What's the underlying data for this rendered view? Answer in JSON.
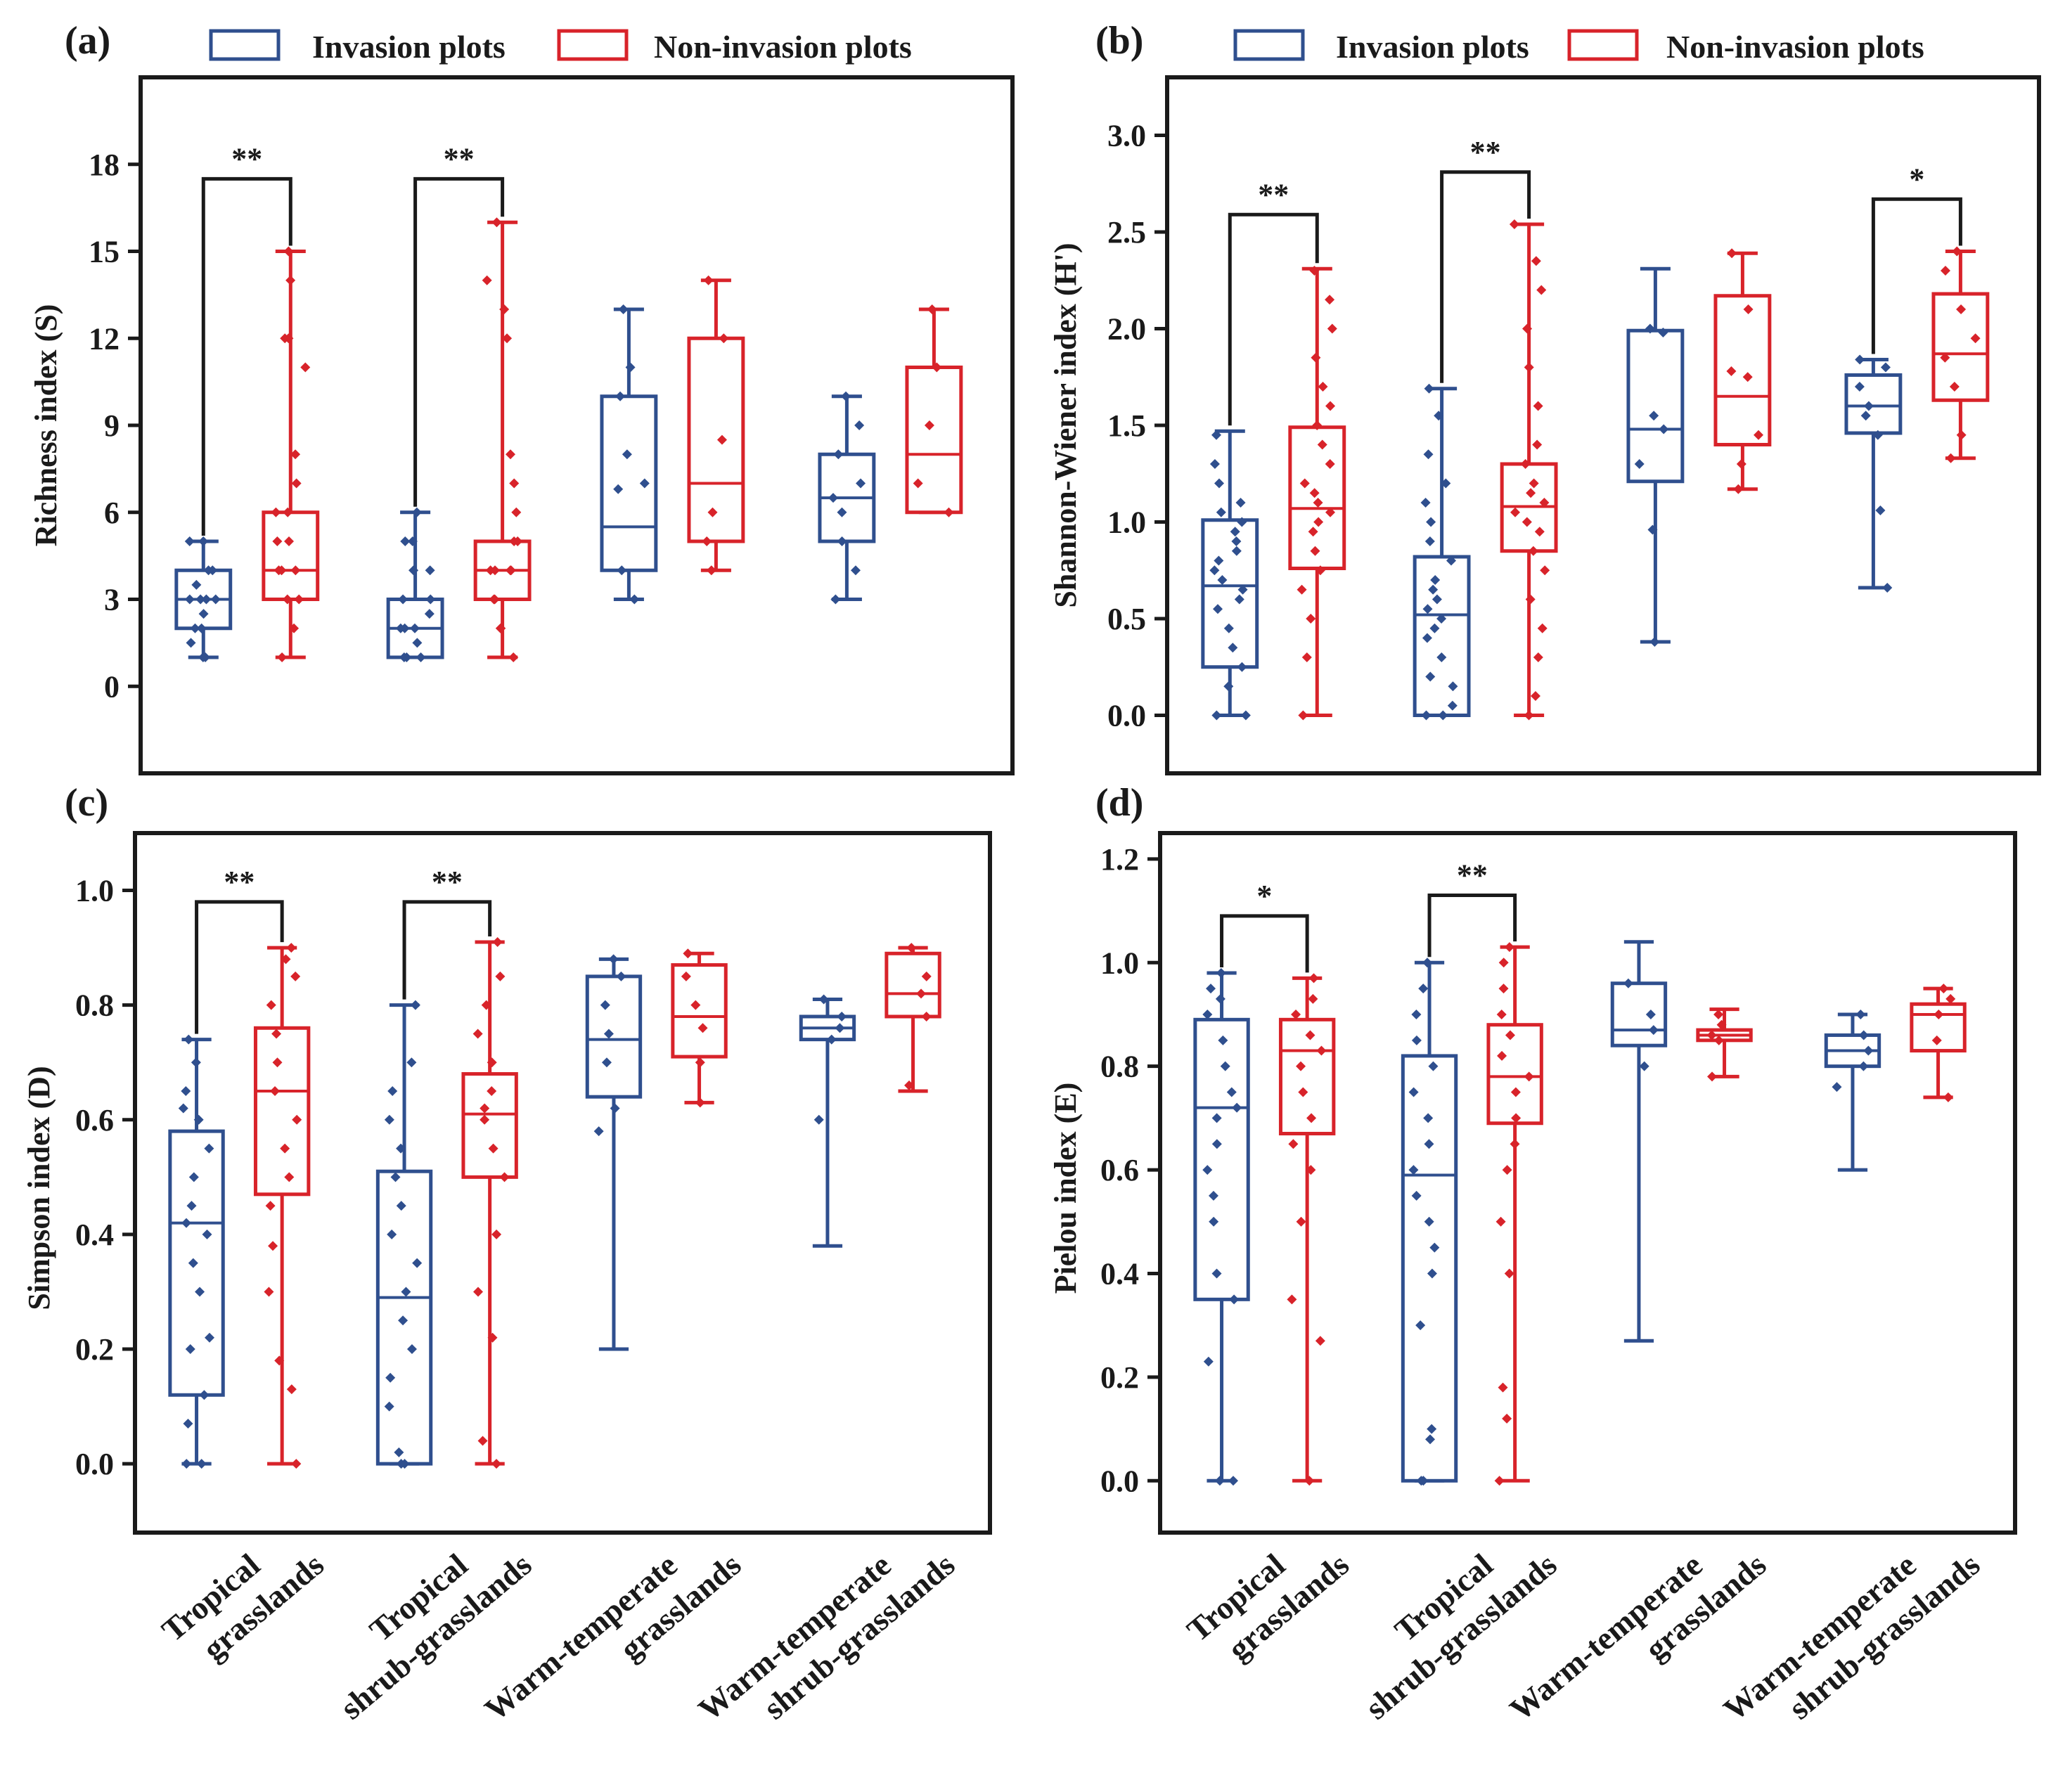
{
  "figure": {
    "colors": {
      "invasion": "#2f4f8e",
      "non_invasion": "#d8232a",
      "frame": "#1a1a1a"
    },
    "categories": [
      [
        "Tropical",
        "grasslands"
      ],
      [
        "Tropical",
        "shrub-grasslands"
      ],
      [
        "Warm-temperate",
        "grasslands"
      ],
      [
        "Warm-temperate",
        "shrub-grasslands"
      ]
    ]
  },
  "chart_data": [
    {
      "type": "box",
      "panel_label": "(a)",
      "ylabel": "Richness index (S)",
      "ylim": [
        -3,
        21
      ],
      "yticks": [
        0,
        3,
        6,
        9,
        12,
        15,
        18
      ],
      "ytick_labels": [
        "0",
        "3",
        "6",
        "9",
        "12",
        "15",
        "18"
      ],
      "legend": [
        "Invasion plots",
        "Non-invasion plots"
      ],
      "categories": [
        "Tropical grasslands",
        "Tropical shrub-grasslands",
        "Warm-temperate grasslands",
        "Warm-temperate shrub-grasslands"
      ],
      "series": [
        {
          "name": "Invasion plots",
          "boxes": [
            {
              "min": 1,
              "q1": 2,
              "median": 3,
              "q3": 4,
              "max": 5,
              "points": [
                1,
                1,
                1.5,
                2,
                2,
                2.5,
                3,
                3,
                3,
                3,
                3.5,
                4,
                4,
                5,
                5
              ]
            },
            {
              "min": 1,
              "q1": 1,
              "median": 2,
              "q3": 3,
              "max": 6,
              "points": [
                1,
                1,
                1,
                1.5,
                2,
                2,
                2,
                2.5,
                3,
                3,
                4,
                4,
                5,
                5,
                6
              ]
            },
            {
              "min": 3,
              "q1": 4,
              "median": 5.5,
              "q3": 10,
              "max": 13,
              "points": [
                3,
                4,
                6.8,
                7,
                8,
                10,
                11,
                13
              ]
            },
            {
              "min": 3,
              "q1": 5,
              "median": 6.5,
              "q3": 8,
              "max": 10,
              "points": [
                3,
                4,
                5,
                6,
                6.5,
                7,
                8,
                9,
                10
              ]
            }
          ]
        },
        {
          "name": "Non-invasion plots",
          "boxes": [
            {
              "min": 1,
              "q1": 3,
              "median": 4,
              "q3": 6,
              "max": 15,
              "points": [
                1,
                2,
                3,
                3,
                4,
                4,
                4,
                5,
                5,
                6,
                6,
                7,
                8,
                11,
                12,
                12,
                14,
                15
              ]
            },
            {
              "min": 1,
              "q1": 3,
              "median": 4,
              "q3": 5,
              "max": 16,
              "points": [
                1,
                2,
                2,
                3,
                3,
                4,
                4,
                4,
                4,
                5,
                5,
                6,
                7,
                8,
                12,
                13,
                14,
                16
              ]
            },
            {
              "min": 4,
              "q1": 5,
              "median": 7,
              "q3": 12,
              "max": 14,
              "points": [
                4,
                5,
                6,
                8.5,
                12,
                14
              ]
            },
            {
              "min": 6,
              "q1": 6,
              "median": 8,
              "q3": 11,
              "max": 13,
              "points": [
                6,
                7,
                9,
                11,
                13
              ]
            }
          ]
        }
      ],
      "significance": [
        {
          "category": 0,
          "label": "**",
          "bracket_y": 17.5
        },
        {
          "category": 1,
          "label": "**",
          "bracket_y": 17.5
        }
      ]
    },
    {
      "type": "box",
      "panel_label": "(b)",
      "ylabel": "Shannon-Wiener index (H')",
      "ylim": [
        -0.3,
        3.3
      ],
      "yticks": [
        0,
        0.5,
        1,
        1.5,
        2,
        2.5,
        3
      ],
      "ytick_labels": [
        "0.0",
        "0.5",
        "1.0",
        "1.5",
        "2.0",
        "2.5",
        "3.0"
      ],
      "legend": [
        "Invasion plots",
        "Non-invasion plots"
      ],
      "categories": [
        "Tropical grasslands",
        "Tropical shrub-grasslands",
        "Warm-temperate grasslands",
        "Warm-temperate shrub-grasslands"
      ],
      "series": [
        {
          "name": "Invasion plots",
          "boxes": [
            {
              "min": 0,
              "q1": 0.25,
              "median": 0.67,
              "q3": 1.01,
              "max": 1.47,
              "points": [
                0,
                0,
                0.15,
                0.25,
                0.35,
                0.45,
                0.55,
                0.6,
                0.65,
                0.7,
                0.75,
                0.8,
                0.85,
                0.9,
                0.95,
                1.0,
                1.05,
                1.1,
                1.2,
                1.3,
                1.45
              ]
            },
            {
              "min": 0,
              "q1": 0,
              "median": 0.52,
              "q3": 0.82,
              "max": 1.69,
              "points": [
                0,
                0,
                0.05,
                0.15,
                0.2,
                0.3,
                0.4,
                0.45,
                0.5,
                0.55,
                0.6,
                0.65,
                0.7,
                0.8,
                0.9,
                1.0,
                1.1,
                1.2,
                1.35,
                1.55,
                1.69
              ]
            },
            {
              "min": 0.38,
              "q1": 1.21,
              "median": 1.48,
              "q3": 1.99,
              "max": 2.31,
              "points": [
                0.38,
                0.96,
                1.3,
                1.48,
                1.55,
                1.98,
                2.0
              ]
            },
            {
              "min": 0.66,
              "q1": 1.46,
              "median": 1.6,
              "q3": 1.76,
              "max": 1.84,
              "points": [
                0.66,
                1.06,
                1.45,
                1.55,
                1.6,
                1.7,
                1.8,
                1.84
              ]
            }
          ]
        },
        {
          "name": "Non-invasion plots",
          "boxes": [
            {
              "min": 0,
              "q1": 0.76,
              "median": 1.07,
              "q3": 1.49,
              "max": 2.31,
              "points": [
                0,
                0.3,
                0.5,
                0.65,
                0.75,
                0.85,
                0.95,
                1.0,
                1.05,
                1.1,
                1.15,
                1.2,
                1.3,
                1.4,
                1.5,
                1.6,
                1.7,
                1.85,
                2.0,
                2.15,
                2.3
              ]
            },
            {
              "min": 0,
              "q1": 0.85,
              "median": 1.08,
              "q3": 1.3,
              "max": 2.54,
              "points": [
                0,
                0.1,
                0.3,
                0.45,
                0.6,
                0.75,
                0.85,
                0.95,
                1.0,
                1.05,
                1.1,
                1.15,
                1.2,
                1.3,
                1.4,
                1.6,
                1.8,
                2.0,
                2.2,
                2.35,
                2.54
              ]
            },
            {
              "min": 1.17,
              "q1": 1.4,
              "median": 1.65,
              "q3": 2.17,
              "max": 2.39,
              "points": [
                1.17,
                1.3,
                1.45,
                1.75,
                1.78,
                2.1,
                2.39
              ]
            },
            {
              "min": 1.33,
              "q1": 1.63,
              "median": 1.87,
              "q3": 2.18,
              "max": 2.4,
              "points": [
                1.33,
                1.45,
                1.7,
                1.85,
                1.95,
                2.1,
                2.3,
                2.4
              ]
            }
          ]
        }
      ],
      "significance": [
        {
          "category": 0,
          "label": "**",
          "bracket_y": 2.59
        },
        {
          "category": 1,
          "label": "**",
          "bracket_y": 2.81
        },
        {
          "category": 3,
          "label": "*",
          "bracket_y": 2.67
        }
      ]
    },
    {
      "type": "box",
      "panel_label": "(c)",
      "ylabel": "Simpson index (D)",
      "ylim": [
        -0.12,
        1.1
      ],
      "yticks": [
        0,
        0.2,
        0.4,
        0.6,
        0.8,
        1
      ],
      "ytick_labels": [
        "0.0",
        "0.2",
        "0.4",
        "0.6",
        "0.8",
        "1.0"
      ],
      "legend": [],
      "categories": [
        "Tropical grasslands",
        "Tropical shrub-grasslands",
        "Warm-temperate grasslands",
        "Warm-temperate shrub-grasslands"
      ],
      "series": [
        {
          "name": "Invasion plots",
          "boxes": [
            {
              "min": 0,
              "q1": 0.12,
              "median": 0.42,
              "q3": 0.58,
              "max": 0.74,
              "points": [
                0,
                0,
                0.07,
                0.12,
                0.2,
                0.22,
                0.3,
                0.35,
                0.4,
                0.42,
                0.45,
                0.5,
                0.55,
                0.6,
                0.62,
                0.65,
                0.7,
                0.74
              ]
            },
            {
              "min": 0,
              "q1": 0,
              "median": 0.29,
              "q3": 0.51,
              "max": 0.8,
              "points": [
                0,
                0,
                0.02,
                0.1,
                0.15,
                0.2,
                0.25,
                0.3,
                0.35,
                0.4,
                0.45,
                0.5,
                0.55,
                0.6,
                0.65,
                0.7,
                0.8
              ]
            },
            {
              "min": 0.2,
              "q1": 0.64,
              "median": 0.74,
              "q3": 0.85,
              "max": 0.88,
              "points": [
                0.58,
                0.62,
                0.7,
                0.75,
                0.8,
                0.85,
                0.88
              ]
            },
            {
              "min": 0.38,
              "q1": 0.74,
              "median": 0.76,
              "q3": 0.78,
              "max": 0.81,
              "points": [
                0.6,
                0.74,
                0.76,
                0.78,
                0.81
              ]
            }
          ]
        },
        {
          "name": "Non-invasion plots",
          "boxes": [
            {
              "min": 0,
              "q1": 0.47,
              "median": 0.65,
              "q3": 0.76,
              "max": 0.9,
              "points": [
                0,
                0.13,
                0.18,
                0.3,
                0.38,
                0.45,
                0.5,
                0.55,
                0.6,
                0.65,
                0.7,
                0.75,
                0.8,
                0.85,
                0.88,
                0.9
              ]
            },
            {
              "min": 0,
              "q1": 0.5,
              "median": 0.61,
              "q3": 0.68,
              "max": 0.91,
              "points": [
                0,
                0.04,
                0.22,
                0.3,
                0.4,
                0.5,
                0.55,
                0.6,
                0.62,
                0.65,
                0.7,
                0.75,
                0.8,
                0.85,
                0.91
              ]
            },
            {
              "min": 0.63,
              "q1": 0.71,
              "median": 0.78,
              "q3": 0.87,
              "max": 0.89,
              "points": [
                0.63,
                0.7,
                0.76,
                0.8,
                0.85,
                0.89
              ]
            },
            {
              "min": 0.65,
              "q1": 0.78,
              "median": 0.82,
              "q3": 0.89,
              "max": 0.9,
              "points": [
                0.66,
                0.78,
                0.82,
                0.85,
                0.9
              ]
            }
          ]
        }
      ],
      "significance": [
        {
          "category": 0,
          "label": "**",
          "bracket_y": 0.98
        },
        {
          "category": 1,
          "label": "**",
          "bracket_y": 0.98
        }
      ]
    },
    {
      "type": "box",
      "panel_label": "(d)",
      "ylabel": "Pielou index (E)",
      "ylim": [
        -0.1,
        1.25
      ],
      "yticks": [
        0,
        0.2,
        0.4,
        0.6,
        0.8,
        1,
        1.2
      ],
      "ytick_labels": [
        "0.0",
        "0.2",
        "0.4",
        "0.6",
        "0.8",
        "1.0",
        "1.2"
      ],
      "legend": [],
      "categories": [
        "Tropical grasslands",
        "Tropical shrub-grasslands",
        "Warm-temperate grasslands",
        "Warm-temperate shrub-grasslands"
      ],
      "series": [
        {
          "name": "Invasion plots",
          "boxes": [
            {
              "min": 0,
              "q1": 0.35,
              "median": 0.72,
              "q3": 0.89,
              "max": 0.98,
              "points": [
                0,
                0,
                0.23,
                0.35,
                0.4,
                0.5,
                0.55,
                0.6,
                0.65,
                0.7,
                0.72,
                0.75,
                0.8,
                0.85,
                0.9,
                0.93,
                0.95,
                0.98
              ]
            },
            {
              "min": 0,
              "q1": 0,
              "median": 0.59,
              "q3": 0.82,
              "max": 1.0,
              "points": [
                0,
                0,
                0.08,
                0.1,
                0.3,
                0.4,
                0.45,
                0.5,
                0.55,
                0.6,
                0.65,
                0.7,
                0.75,
                0.8,
                0.85,
                0.9,
                0.95,
                1.0
              ]
            },
            {
              "min": 0.27,
              "q1": 0.84,
              "median": 0.87,
              "q3": 0.96,
              "max": 1.04,
              "points": [
                0.8,
                0.87,
                0.9,
                0.96
              ]
            },
            {
              "min": 0.6,
              "q1": 0.8,
              "median": 0.83,
              "q3": 0.86,
              "max": 0.9,
              "points": [
                0.76,
                0.8,
                0.83,
                0.86,
                0.9
              ]
            }
          ]
        },
        {
          "name": "Non-invasion plots",
          "boxes": [
            {
              "min": 0,
              "q1": 0.67,
              "median": 0.83,
              "q3": 0.89,
              "max": 0.97,
              "points": [
                0,
                0.27,
                0.35,
                0.5,
                0.6,
                0.65,
                0.7,
                0.75,
                0.8,
                0.83,
                0.86,
                0.9,
                0.93,
                0.97
              ]
            },
            {
              "min": 0,
              "q1": 0.69,
              "median": 0.78,
              "q3": 0.88,
              "max": 1.03,
              "points": [
                0,
                0.12,
                0.18,
                0.4,
                0.5,
                0.6,
                0.65,
                0.7,
                0.75,
                0.78,
                0.82,
                0.86,
                0.9,
                0.95,
                1.0,
                1.03
              ]
            },
            {
              "min": 0.78,
              "q1": 0.85,
              "median": 0.86,
              "q3": 0.87,
              "max": 0.91,
              "points": [
                0.78,
                0.85,
                0.86,
                0.88,
                0.9
              ]
            },
            {
              "min": 0.74,
              "q1": 0.83,
              "median": 0.9,
              "q3": 0.92,
              "max": 0.95,
              "points": [
                0.74,
                0.85,
                0.9,
                0.93,
                0.95
              ]
            }
          ]
        }
      ],
      "significance": [
        {
          "category": 0,
          "label": "*",
          "bracket_y": 1.09
        },
        {
          "category": 1,
          "label": "**",
          "bracket_y": 1.13
        }
      ]
    }
  ]
}
